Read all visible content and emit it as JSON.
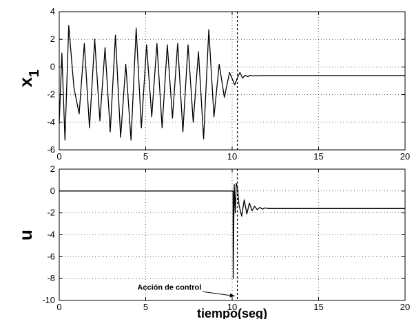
{
  "chart_data": [
    {
      "type": "line",
      "ylabel": "x",
      "ylabel_subscript": "1",
      "xlabel": "",
      "xlim": [
        0,
        20
      ],
      "ylim": [
        -6,
        4
      ],
      "xticks": [
        0,
        5,
        10,
        15,
        20
      ],
      "yticks": [
        -6,
        -4,
        -2,
        0,
        2,
        4
      ],
      "grid": true,
      "vline": 10.3,
      "series": [
        {
          "x": [
            0.0,
            0.15,
            0.33,
            0.55,
            0.85,
            1.15,
            1.45,
            1.75,
            2.05,
            2.35,
            2.65,
            2.95,
            3.25,
            3.55,
            3.85,
            4.15,
            4.45,
            4.75,
            5.05,
            5.35,
            5.65,
            5.95,
            6.25,
            6.55,
            6.85,
            7.15,
            7.45,
            7.75,
            8.05,
            8.35,
            8.65,
            8.95,
            9.25,
            9.55,
            9.85,
            10.15,
            10.3,
            10.45,
            10.6,
            10.75,
            10.9,
            11.05,
            11.2,
            11.35,
            11.5,
            11.7,
            12.0,
            12.5,
            13.0,
            14.0,
            16.0,
            18.0,
            20.0
          ],
          "values": [
            -4.1,
            1.0,
            -5.3,
            3.0,
            -1.5,
            -3.4,
            1.7,
            -4.4,
            2.0,
            -3.9,
            1.4,
            -4.7,
            2.3,
            -5.1,
            0.2,
            -5.3,
            2.8,
            -4.4,
            1.6,
            -3.6,
            1.7,
            -4.4,
            1.6,
            -3.7,
            1.7,
            -4.7,
            1.6,
            -4.0,
            1.1,
            -5.2,
            2.7,
            -3.6,
            0.2,
            -2.2,
            -0.4,
            -1.3,
            -0.8,
            -0.4,
            -0.8,
            -0.6,
            -0.7,
            -0.6,
            -0.65,
            -0.62,
            -0.64,
            -0.62,
            -0.62,
            -0.62,
            -0.62,
            -0.62,
            -0.62,
            -0.62,
            -0.62
          ]
        }
      ]
    },
    {
      "type": "line",
      "ylabel": "u",
      "xlabel": "tiempo(seg)",
      "xlim": [
        0,
        20
      ],
      "ylim": [
        -10,
        2
      ],
      "xticks": [
        0,
        5,
        10,
        15,
        20
      ],
      "yticks": [
        -10,
        -8,
        -6,
        -4,
        -2,
        0,
        2
      ],
      "grid": true,
      "vline": 10.3,
      "annotation": {
        "text": "Acción de control",
        "from": [
          8.3,
          -9.2
        ],
        "to": [
          10.15,
          -9.6
        ]
      },
      "series": [
        {
          "x": [
            0.0,
            10.05,
            10.06,
            10.12,
            10.18,
            10.24,
            10.3,
            10.4,
            10.55,
            10.7,
            10.85,
            11.0,
            11.15,
            11.3,
            11.45,
            11.6,
            11.75,
            11.9,
            12.1,
            12.5,
            13.0,
            14.0,
            16.0,
            18.0,
            20.0
          ],
          "values": [
            0.0,
            0.0,
            -8.0,
            0.6,
            -2.0,
            0.7,
            0.4,
            -1.3,
            -2.3,
            -0.8,
            -2.1,
            -1.1,
            -1.8,
            -1.4,
            -1.7,
            -1.5,
            -1.65,
            -1.55,
            -1.6,
            -1.6,
            -1.6,
            -1.6,
            -1.6,
            -1.6,
            -1.6
          ]
        }
      ]
    }
  ]
}
